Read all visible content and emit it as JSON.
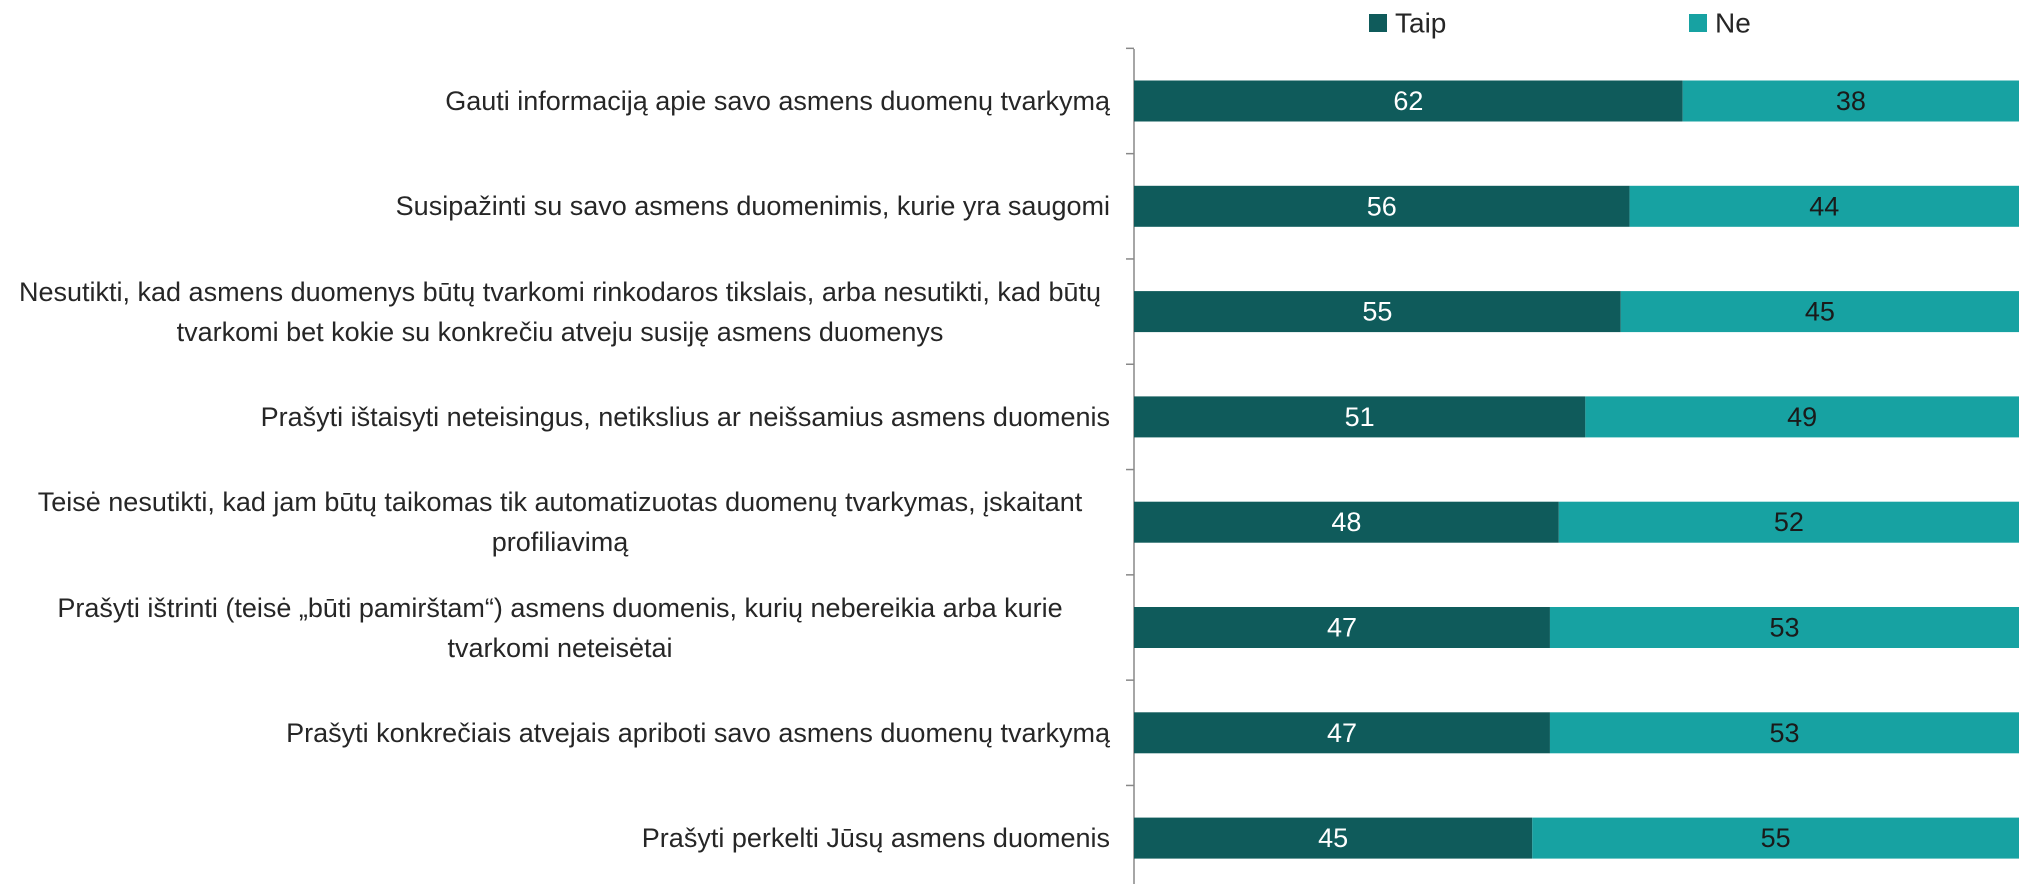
{
  "chart_data": {
    "type": "stacked_bar_horizontal",
    "categories": [
      "Gauti informaciją apie savo asmens duomenų tvarkymą",
      "Susipažinti su savo asmens duomenimis, kurie yra saugomi",
      "Nesutikti, kad asmens duomenys būtų tvarkomi rinkodaros tikslais, arba nesutikti, kad būtų tvarkomi bet kokie su konkrečiu atveju susiję asmens duomenys",
      "Prašyti ištaisyti neteisingus, netikslius ar neišsamius asmens duomenis",
      "Teisė nesutikti, kad jam būtų taikomas tik automatizuotas duomenų tvarkymas, įskaitant profiliavimą",
      "Prašyti ištrinti (teisė „būti pamirštam“) asmens duomenis, kurių nebereikia arba kurie tvarkomi neteisėtai",
      "Prašyti konkrečiais atvejais apriboti savo asmens duomenų tvarkymą",
      "Prašyti perkelti Jūsų asmens duomenis"
    ],
    "series": [
      {
        "name": "Taip",
        "color": "#0f5b5b",
        "values": [
          62,
          56,
          55,
          51,
          48,
          47,
          47,
          45
        ]
      },
      {
        "name": "Ne",
        "color": "#17a2a2",
        "values": [
          38,
          44,
          45,
          49,
          52,
          53,
          53,
          55
        ]
      }
    ],
    "xlim": [
      0,
      100
    ]
  }
}
